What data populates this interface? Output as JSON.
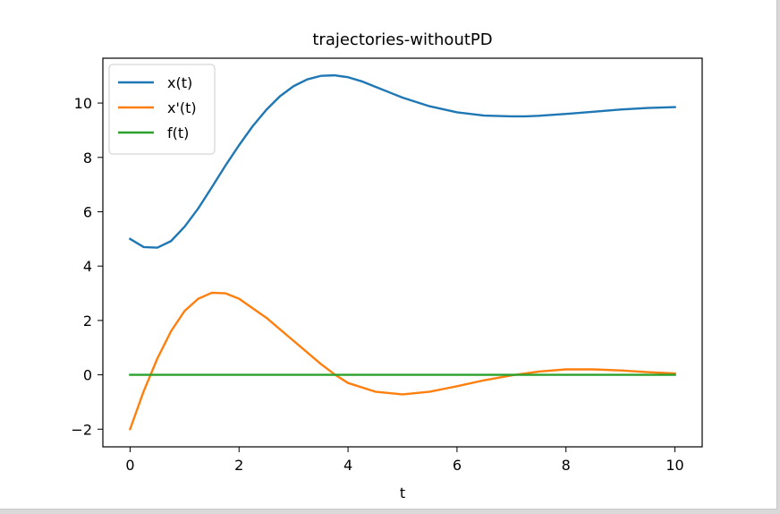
{
  "chart_data": {
    "type": "line",
    "title": "trajectories-withoutPD",
    "xlabel": "t",
    "ylabel": "",
    "xlim": [
      -0.5,
      10.5
    ],
    "ylim": [
      -2.65,
      11.65
    ],
    "xticks": [
      0,
      2,
      4,
      6,
      8,
      10
    ],
    "xtick_labels": [
      "0",
      "2",
      "4",
      "6",
      "8",
      "10"
    ],
    "yticks": [
      -2,
      0,
      2,
      4,
      6,
      8,
      10
    ],
    "ytick_labels": [
      "−2",
      "0",
      "2",
      "4",
      "6",
      "8",
      "10"
    ],
    "grid": false,
    "legend_position": "top-left",
    "series": [
      {
        "name": "x(t)",
        "color": "#1f77b4",
        "x": [
          0,
          0.25,
          0.5,
          0.75,
          1.0,
          1.25,
          1.5,
          1.75,
          2.0,
          2.25,
          2.5,
          2.75,
          3.0,
          3.25,
          3.5,
          3.75,
          4.0,
          4.25,
          4.5,
          4.75,
          5.0,
          5.5,
          6.0,
          6.5,
          7.0,
          7.25,
          7.5,
          8.0,
          8.5,
          9.0,
          9.5,
          10.0
        ],
        "y": [
          5.0,
          4.7,
          4.68,
          4.92,
          5.45,
          6.12,
          6.9,
          7.7,
          8.45,
          9.15,
          9.75,
          10.25,
          10.62,
          10.87,
          11.0,
          11.02,
          10.95,
          10.8,
          10.6,
          10.4,
          10.2,
          9.88,
          9.66,
          9.54,
          9.51,
          9.51,
          9.53,
          9.6,
          9.68,
          9.76,
          9.82,
          9.85
        ]
      },
      {
        "name": "x'(t)",
        "color": "#ff7f0e",
        "x": [
          0,
          0.25,
          0.5,
          0.75,
          1.0,
          1.25,
          1.5,
          1.75,
          2.0,
          2.5,
          3.0,
          3.5,
          3.75,
          4.0,
          4.5,
          5.0,
          5.5,
          6.0,
          6.5,
          7.0,
          7.5,
          8.0,
          8.5,
          9.0,
          9.5,
          10.0
        ],
        "y": [
          -2.0,
          -0.6,
          0.6,
          1.6,
          2.35,
          2.8,
          3.02,
          3.0,
          2.8,
          2.1,
          1.25,
          0.4,
          0.02,
          -0.3,
          -0.62,
          -0.72,
          -0.62,
          -0.42,
          -0.2,
          -0.02,
          0.12,
          0.2,
          0.2,
          0.16,
          0.1,
          0.05
        ]
      },
      {
        "name": "f(t)",
        "color": "#2ca02c",
        "x": [
          0,
          10
        ],
        "y": [
          0,
          0
        ]
      }
    ]
  }
}
